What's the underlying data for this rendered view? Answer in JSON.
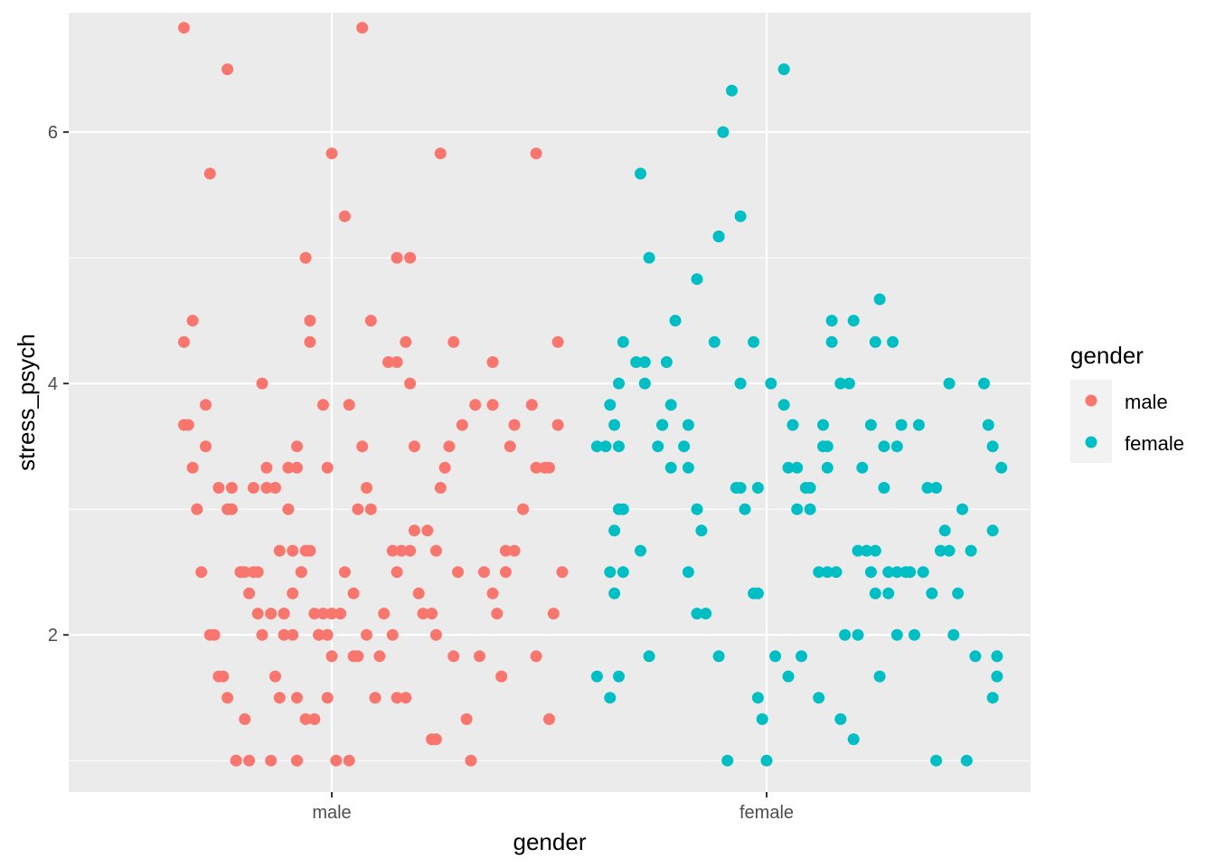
{
  "chart_data": {
    "type": "scatter",
    "subtype": "jitter",
    "title": "",
    "xlabel": "gender",
    "ylabel": "stress_psych",
    "categories": [
      "male",
      "female"
    ],
    "ylim": [
      0.75,
      6.95
    ],
    "yticks": [
      2,
      4,
      6
    ],
    "ytick_labels": [
      "2",
      "4",
      "6"
    ],
    "grid": true,
    "legend": {
      "title": "gender",
      "position": "right",
      "entries": [
        {
          "label": "male",
          "color": "#F8766D"
        },
        {
          "label": "female",
          "color": "#00BFC4"
        }
      ]
    },
    "series": [
      {
        "name": "male",
        "color": "#F8766D",
        "points": [
          [
            -0.34,
            3.67
          ],
          [
            -0.33,
            3.67
          ],
          [
            -0.32,
            3.33
          ],
          [
            -0.31,
            3.0
          ],
          [
            -0.3,
            2.5
          ],
          [
            -0.29,
            3.83
          ],
          [
            -0.29,
            3.5
          ],
          [
            -0.28,
            2.0
          ],
          [
            -0.27,
            2.0
          ],
          [
            -0.26,
            3.17
          ],
          [
            -0.26,
            1.67
          ],
          [
            -0.25,
            1.67
          ],
          [
            -0.24,
            1.5
          ],
          [
            -0.24,
            3.0
          ],
          [
            -0.23,
            3.17
          ],
          [
            -0.23,
            3.0
          ],
          [
            -0.22,
            1.0
          ],
          [
            -0.21,
            2.5
          ],
          [
            -0.2,
            1.33
          ],
          [
            -0.2,
            2.5
          ],
          [
            -0.19,
            1.0
          ],
          [
            -0.19,
            2.33
          ],
          [
            -0.18,
            3.17
          ],
          [
            -0.18,
            2.5
          ],
          [
            -0.17,
            2.17
          ],
          [
            -0.16,
            2.0
          ],
          [
            -0.16,
            4.0
          ],
          [
            -0.15,
            3.17
          ],
          [
            -0.15,
            3.33
          ],
          [
            -0.14,
            2.17
          ],
          [
            -0.14,
            1.0
          ],
          [
            -0.13,
            1.67
          ],
          [
            -0.12,
            1.5
          ],
          [
            -0.11,
            2.17
          ],
          [
            -0.1,
            3.0
          ],
          [
            -0.1,
            3.33
          ],
          [
            -0.09,
            2.33
          ],
          [
            -0.09,
            2.67
          ],
          [
            -0.08,
            3.33
          ],
          [
            -0.08,
            1.5
          ],
          [
            -0.08,
            3.5
          ],
          [
            -0.07,
            2.5
          ],
          [
            -0.06,
            2.67
          ],
          [
            -0.06,
            1.33
          ],
          [
            -0.05,
            2.67
          ],
          [
            -0.05,
            4.5
          ],
          [
            -0.04,
            2.17
          ],
          [
            -0.03,
            2.0
          ],
          [
            -0.02,
            2.17
          ],
          [
            -0.01,
            1.5
          ],
          [
            -0.01,
            2.0
          ],
          [
            0.0,
            1.83
          ],
          [
            -0.08,
            1.0
          ],
          [
            -0.11,
            2.17
          ],
          [
            -0.13,
            3.17
          ],
          [
            -0.17,
            2.5
          ],
          [
            -0.21,
            2.5
          ],
          [
            -0.22,
            1.0
          ],
          [
            -0.34,
            4.33
          ],
          [
            -0.34,
            6.83
          ],
          [
            -0.32,
            4.5
          ],
          [
            -0.24,
            6.5
          ],
          [
            -0.28,
            5.67
          ],
          [
            -0.12,
            2.67
          ],
          [
            -0.11,
            2.0
          ],
          [
            -0.09,
            2.0
          ],
          [
            -0.08,
            1.0
          ],
          [
            -0.07,
            2.5
          ],
          [
            -0.06,
            5.0
          ],
          [
            -0.05,
            4.33
          ],
          [
            -0.04,
            1.33
          ],
          [
            -0.03,
            2.0
          ],
          [
            -0.02,
            3.83
          ],
          [
            -0.01,
            3.33
          ],
          [
            0.0,
            5.83
          ],
          [
            0.0,
            2.17
          ],
          [
            0.01,
            1.0
          ],
          [
            0.02,
            2.17
          ],
          [
            0.03,
            5.33
          ],
          [
            0.03,
            2.5
          ],
          [
            0.04,
            1.0
          ],
          [
            0.04,
            3.83
          ],
          [
            0.05,
            1.83
          ],
          [
            0.05,
            2.33
          ],
          [
            0.06,
            3.0
          ],
          [
            0.06,
            1.83
          ],
          [
            0.07,
            3.5
          ],
          [
            0.07,
            6.83
          ],
          [
            0.08,
            3.17
          ],
          [
            0.08,
            2.0
          ],
          [
            0.09,
            4.5
          ],
          [
            0.09,
            3.0
          ],
          [
            0.1,
            1.5
          ],
          [
            0.1,
            1.5
          ],
          [
            0.11,
            1.83
          ],
          [
            0.12,
            2.17
          ],
          [
            0.13,
            4.17
          ],
          [
            0.14,
            2.67
          ],
          [
            0.14,
            2.0
          ],
          [
            0.15,
            2.5
          ],
          [
            0.15,
            1.5
          ],
          [
            0.15,
            5.0
          ],
          [
            0.15,
            4.17
          ],
          [
            0.16,
            2.67
          ],
          [
            0.17,
            4.33
          ],
          [
            0.17,
            1.5
          ],
          [
            0.18,
            2.67
          ],
          [
            0.18,
            5.0
          ],
          [
            0.18,
            4.0
          ],
          [
            0.19,
            3.5
          ],
          [
            0.19,
            2.83
          ],
          [
            0.2,
            2.33
          ],
          [
            0.21,
            2.17
          ],
          [
            0.22,
            2.83
          ],
          [
            0.23,
            2.17
          ],
          [
            0.23,
            1.17
          ],
          [
            0.24,
            2.67
          ],
          [
            0.24,
            2.0
          ],
          [
            0.24,
            1.17
          ],
          [
            0.25,
            3.17
          ],
          [
            0.25,
            5.83
          ],
          [
            0.26,
            3.33
          ],
          [
            0.27,
            3.5
          ],
          [
            0.28,
            1.83
          ],
          [
            0.28,
            4.33
          ],
          [
            0.29,
            2.5
          ],
          [
            0.3,
            3.67
          ],
          [
            0.31,
            1.33
          ],
          [
            0.32,
            1.0
          ],
          [
            0.33,
            3.83
          ],
          [
            0.34,
            1.83
          ],
          [
            0.35,
            2.5
          ],
          [
            0.37,
            2.33
          ],
          [
            0.37,
            3.83
          ],
          [
            0.37,
            4.17
          ],
          [
            0.38,
            2.17
          ],
          [
            0.39,
            1.67
          ],
          [
            0.4,
            2.5
          ],
          [
            0.4,
            2.67
          ],
          [
            0.41,
            3.5
          ],
          [
            0.42,
            2.67
          ],
          [
            0.42,
            3.67
          ],
          [
            0.44,
            3.0
          ],
          [
            0.46,
            3.83
          ],
          [
            0.47,
            1.83
          ],
          [
            0.47,
            5.83
          ],
          [
            0.47,
            3.33
          ],
          [
            0.49,
            3.33
          ],
          [
            0.5,
            1.33
          ],
          [
            0.5,
            3.33
          ],
          [
            0.51,
            2.17
          ],
          [
            0.52,
            4.33
          ],
          [
            0.52,
            3.67
          ],
          [
            0.53,
            2.5
          ]
        ]
      },
      {
        "name": "female",
        "color": "#00BFC4",
        "points": [
          [
            -0.39,
            1.67
          ],
          [
            -0.39,
            3.5
          ],
          [
            -0.37,
            3.5
          ],
          [
            -0.36,
            1.5
          ],
          [
            -0.36,
            2.5
          ],
          [
            -0.36,
            3.83
          ],
          [
            -0.35,
            2.83
          ],
          [
            -0.35,
            2.33
          ],
          [
            -0.35,
            3.67
          ],
          [
            -0.34,
            3.0
          ],
          [
            -0.34,
            1.67
          ],
          [
            -0.34,
            3.5
          ],
          [
            -0.34,
            4.0
          ],
          [
            -0.33,
            3.0
          ],
          [
            -0.33,
            2.5
          ],
          [
            -0.33,
            4.33
          ],
          [
            -0.3,
            4.17
          ],
          [
            -0.29,
            5.67
          ],
          [
            -0.29,
            2.67
          ],
          [
            -0.28,
            4.0
          ],
          [
            -0.28,
            4.17
          ],
          [
            -0.27,
            1.83
          ],
          [
            -0.27,
            5.0
          ],
          [
            -0.25,
            3.5
          ],
          [
            -0.24,
            3.67
          ],
          [
            -0.24,
            3.67
          ],
          [
            -0.23,
            4.17
          ],
          [
            -0.22,
            3.83
          ],
          [
            -0.21,
            4.5
          ],
          [
            -0.22,
            3.33
          ],
          [
            -0.19,
            3.5
          ],
          [
            -0.18,
            3.67
          ],
          [
            -0.18,
            3.33
          ],
          [
            -0.18,
            2.5
          ],
          [
            -0.16,
            4.83
          ],
          [
            -0.16,
            2.17
          ],
          [
            -0.16,
            3.0
          ],
          [
            -0.15,
            2.83
          ],
          [
            -0.14,
            2.17
          ],
          [
            -0.12,
            4.33
          ],
          [
            -0.11,
            1.83
          ],
          [
            -0.11,
            5.17
          ],
          [
            -0.11,
            5.17
          ],
          [
            -0.1,
            6.0
          ],
          [
            -0.09,
            1.0
          ],
          [
            -0.08,
            6.33
          ],
          [
            -0.07,
            3.17
          ],
          [
            -0.06,
            3.17
          ],
          [
            -0.06,
            5.33
          ],
          [
            -0.06,
            4.0
          ],
          [
            -0.05,
            3.0
          ],
          [
            -0.03,
            2.33
          ],
          [
            -0.03,
            4.33
          ],
          [
            -0.02,
            2.33
          ],
          [
            -0.02,
            3.17
          ],
          [
            -0.02,
            1.5
          ],
          [
            -0.01,
            1.33
          ],
          [
            0.0,
            1.0
          ],
          [
            0.01,
            4.0
          ],
          [
            0.02,
            1.83
          ],
          [
            0.04,
            6.5
          ],
          [
            0.04,
            3.83
          ],
          [
            0.05,
            3.33
          ],
          [
            0.05,
            1.67
          ],
          [
            0.06,
            3.67
          ],
          [
            0.07,
            3.0
          ],
          [
            0.07,
            3.33
          ],
          [
            0.08,
            1.83
          ],
          [
            0.09,
            3.17
          ],
          [
            0.1,
            3.17
          ],
          [
            0.1,
            3.0
          ],
          [
            0.12,
            1.5
          ],
          [
            0.12,
            2.5
          ],
          [
            0.13,
            3.67
          ],
          [
            0.13,
            3.5
          ],
          [
            0.14,
            3.5
          ],
          [
            0.14,
            3.33
          ],
          [
            0.14,
            2.5
          ],
          [
            0.15,
            4.5
          ],
          [
            0.15,
            4.33
          ],
          [
            0.16,
            2.5
          ],
          [
            0.17,
            1.33
          ],
          [
            0.17,
            4.0
          ],
          [
            0.18,
            2.0
          ],
          [
            0.19,
            4.0
          ],
          [
            0.2,
            1.17
          ],
          [
            0.2,
            4.5
          ],
          [
            0.21,
            2.67
          ],
          [
            0.21,
            2.0
          ],
          [
            0.22,
            3.33
          ],
          [
            0.23,
            2.67
          ],
          [
            0.24,
            3.67
          ],
          [
            0.24,
            2.5
          ],
          [
            0.25,
            4.33
          ],
          [
            0.25,
            2.67
          ],
          [
            0.25,
            2.33
          ],
          [
            0.26,
            1.67
          ],
          [
            0.26,
            4.67
          ],
          [
            0.27,
            3.5
          ],
          [
            0.27,
            3.17
          ],
          [
            0.28,
            2.5
          ],
          [
            0.28,
            2.33
          ],
          [
            0.29,
            4.33
          ],
          [
            0.3,
            2.0
          ],
          [
            0.3,
            3.5
          ],
          [
            0.3,
            2.5
          ],
          [
            0.31,
            3.67
          ],
          [
            0.32,
            2.5
          ],
          [
            0.33,
            2.5
          ],
          [
            0.34,
            2.0
          ],
          [
            0.35,
            3.67
          ],
          [
            0.36,
            2.5
          ],
          [
            0.37,
            3.17
          ],
          [
            0.38,
            2.33
          ],
          [
            0.39,
            3.17
          ],
          [
            0.39,
            1.0
          ],
          [
            0.4,
            2.67
          ],
          [
            0.41,
            2.83
          ],
          [
            0.42,
            2.67
          ],
          [
            0.42,
            4.0
          ],
          [
            0.43,
            2.0
          ],
          [
            0.44,
            2.33
          ],
          [
            0.45,
            3.0
          ],
          [
            0.46,
            1.0
          ],
          [
            0.47,
            2.67
          ],
          [
            0.48,
            1.83
          ],
          [
            0.5,
            4.0
          ],
          [
            0.51,
            3.67
          ],
          [
            0.52,
            3.5
          ],
          [
            0.52,
            2.83
          ],
          [
            0.52,
            1.5
          ],
          [
            0.53,
            1.83
          ],
          [
            0.53,
            1.67
          ],
          [
            0.54,
            3.33
          ]
        ]
      }
    ]
  }
}
